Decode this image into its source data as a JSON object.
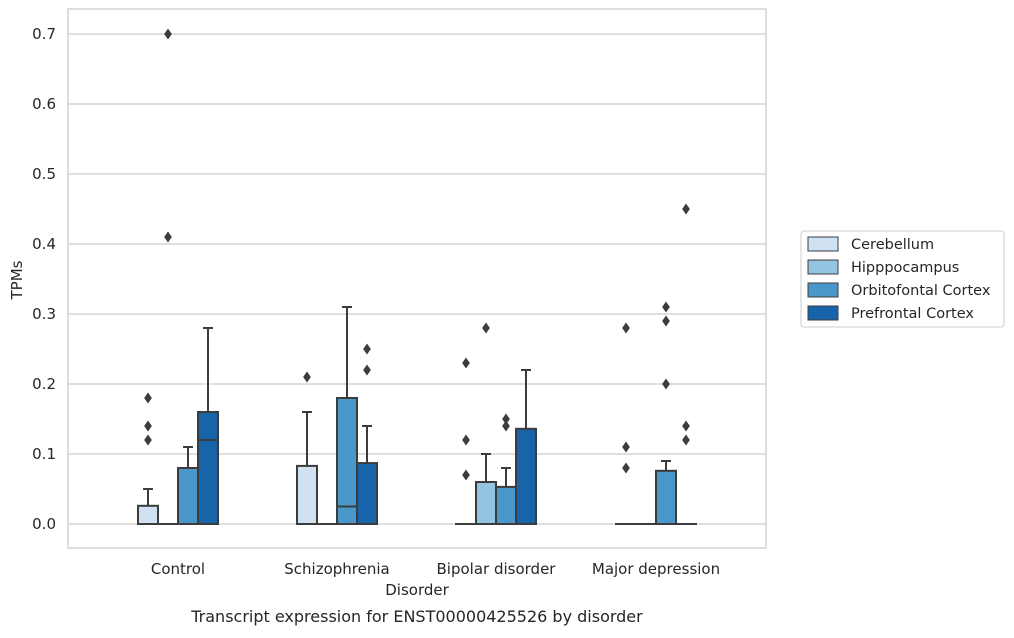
{
  "chart_data": {
    "type": "box",
    "title": "Transcript expression for ENST00000425526 by disorder",
    "xlabel": "Disorder",
    "ylabel": "TPMs",
    "ylim": [
      -0.035,
      0.735
    ],
    "yticks": [
      "0.0",
      "0.1",
      "0.2",
      "0.3",
      "0.4",
      "0.5",
      "0.6",
      "0.7"
    ],
    "ytick_values": [
      0.0,
      0.1,
      0.2,
      0.3,
      0.4,
      0.5,
      0.6,
      0.7
    ],
    "grid": "horizontal",
    "legend_position": "right",
    "categories": [
      "Control",
      "Schizophrenia",
      "Bipolar disorder",
      "Major depression"
    ],
    "series": [
      {
        "name": "Cerebellum",
        "color": "#d0e1f2",
        "boxes": [
          {
            "q1": 0.0,
            "median": 0.0,
            "q3": 0.026,
            "whisker_low": 0.0,
            "whisker_high": 0.05,
            "outliers": [
              0.12,
              0.14,
              0.18
            ]
          },
          {
            "q1": 0.0,
            "median": 0.0,
            "q3": 0.083,
            "whisker_low": 0.0,
            "whisker_high": 0.16,
            "outliers": [
              0.21
            ]
          },
          {
            "q1": 0.0,
            "median": 0.0,
            "q3": 0.0,
            "whisker_low": 0.0,
            "whisker_high": 0.0,
            "outliers": [
              0.07,
              0.12,
              0.23
            ]
          },
          {
            "q1": 0.0,
            "median": 0.0,
            "q3": 0.0,
            "whisker_low": 0.0,
            "whisker_high": 0.0,
            "outliers": [
              0.08,
              0.11,
              0.28
            ]
          }
        ]
      },
      {
        "name": "Hipppocampus",
        "color": "#94c4df",
        "boxes": [
          {
            "q1": 0.0,
            "median": 0.0,
            "q3": 0.0,
            "whisker_low": 0.0,
            "whisker_high": 0.0,
            "outliers": [
              0.41,
              0.7
            ]
          },
          {
            "q1": 0.0,
            "median": 0.0,
            "q3": 0.0,
            "whisker_low": 0.0,
            "whisker_high": 0.0,
            "outliers": []
          },
          {
            "q1": 0.0,
            "median": 0.0,
            "q3": 0.06,
            "whisker_low": 0.0,
            "whisker_high": 0.1,
            "outliers": [
              0.28
            ]
          },
          {
            "q1": 0.0,
            "median": 0.0,
            "q3": 0.0,
            "whisker_low": 0.0,
            "whisker_high": 0.0,
            "outliers": []
          }
        ]
      },
      {
        "name": "Orbitofontal Cortex",
        "color": "#4a98c9",
        "boxes": [
          {
            "q1": 0.0,
            "median": 0.0,
            "q3": 0.08,
            "whisker_low": 0.0,
            "whisker_high": 0.11,
            "outliers": []
          },
          {
            "q1": 0.0,
            "median": 0.025,
            "q3": 0.18,
            "whisker_low": 0.0,
            "whisker_high": 0.31,
            "outliers": []
          },
          {
            "q1": 0.0,
            "median": 0.0,
            "q3": 0.053,
            "whisker_low": 0.0,
            "whisker_high": 0.08,
            "outliers": [
              0.14,
              0.15
            ]
          },
          {
            "q1": 0.0,
            "median": 0.0,
            "q3": 0.076,
            "whisker_low": 0.0,
            "whisker_high": 0.09,
            "outliers": [
              0.2,
              0.29,
              0.31
            ]
          }
        ]
      },
      {
        "name": "Prefrontal Cortex",
        "color": "#1764ab",
        "boxes": [
          {
            "q1": 0.0,
            "median": 0.12,
            "q3": 0.16,
            "whisker_low": 0.0,
            "whisker_high": 0.28,
            "outliers": []
          },
          {
            "q1": 0.0,
            "median": 0.0,
            "q3": 0.087,
            "whisker_low": 0.0,
            "whisker_high": 0.14,
            "outliers": [
              0.22,
              0.25
            ]
          },
          {
            "q1": 0.0,
            "median": 0.0,
            "q3": 0.136,
            "whisker_low": 0.0,
            "whisker_high": 0.22,
            "outliers": []
          },
          {
            "q1": 0.0,
            "median": 0.0,
            "q3": 0.0,
            "whisker_low": 0.0,
            "whisker_high": 0.0,
            "outliers": [
              0.12,
              0.14,
              0.45
            ]
          }
        ]
      }
    ]
  }
}
